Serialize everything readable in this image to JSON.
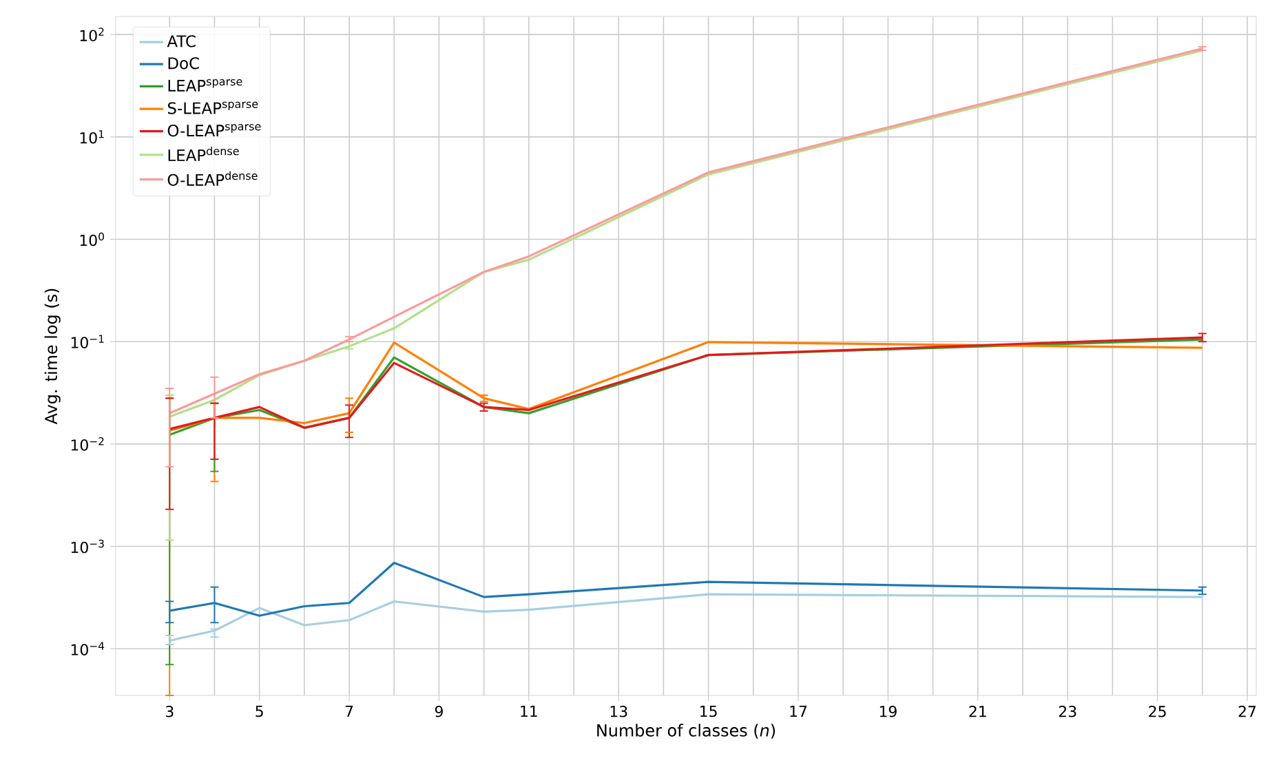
{
  "chart_data": {
    "type": "line",
    "xlabel": "Number of classes (*n*)",
    "ylabel": "Avg. time log (s)",
    "x": [
      3,
      4,
      5,
      6,
      7,
      8,
      10,
      11,
      15,
      26
    ],
    "series": [
      {
        "name": "ATC",
        "color": "#a6cee3",
        "values": [
          0.00012,
          0.00015,
          0.00025,
          0.00017,
          0.00019,
          0.00029,
          0.00023,
          0.00024,
          0.00034,
          0.00032
        ],
        "errors": [
          [
            0.00011,
            0.000135
          ],
          [
            0.00013,
            0.000156
          ],
          null,
          null,
          null,
          null,
          null,
          null,
          null,
          null
        ]
      },
      {
        "name": "DoC",
        "color": "#1f78b4",
        "values": [
          0.000235,
          0.00028,
          0.00021,
          0.00026,
          0.00028,
          0.00069,
          0.00032,
          0.00034,
          0.00045,
          0.00037
        ],
        "errors": [
          [
            0.00018,
            0.00029
          ],
          [
            0.00018,
            0.0004
          ],
          null,
          null,
          null,
          null,
          null,
          null,
          null,
          [
            0.00034,
            0.0004
          ]
        ]
      },
      {
        "name": "LEAP$^{sparse}$",
        "color": "#33a02c",
        "values": [
          0.0123,
          0.0179,
          0.0215,
          0.0144,
          0.018,
          0.07,
          0.023,
          0.02,
          0.074,
          0.105
        ],
        "errors": [
          [
            7e-05,
            0.028
          ],
          [
            0.0054,
            0.025
          ],
          null,
          null,
          null,
          null,
          null,
          null,
          null,
          null
        ]
      },
      {
        "name": "S-LEAP$^{sparse}$",
        "color": "#ff7f00",
        "values": [
          0.0135,
          0.018,
          0.018,
          0.016,
          0.02,
          0.098,
          0.028,
          0.022,
          0.099,
          0.087
        ],
        "errors": [
          [
            3.5e-05,
            0.03
          ],
          [
            0.0043,
            0.025
          ],
          null,
          null,
          [
            0.013,
            0.028
          ],
          null,
          [
            0.026,
            0.03
          ],
          null,
          null,
          null
        ]
      },
      {
        "name": "O-LEAP$^{sparse}$",
        "color": "#e31a1c",
        "values": [
          0.014,
          0.018,
          0.023,
          0.0144,
          0.018,
          0.062,
          0.023,
          0.0215,
          0.074,
          0.11
        ],
        "errors": [
          [
            0.0023,
            0.028
          ],
          [
            0.0071,
            0.025
          ],
          null,
          null,
          [
            0.0116,
            0.024
          ],
          null,
          [
            0.021,
            0.025
          ],
          null,
          null,
          [
            0.1,
            0.12
          ]
        ]
      },
      {
        "name": "LEAP$^{dense}$",
        "color": "#b2df8a",
        "values": [
          0.0185,
          0.027,
          0.047,
          0.065,
          0.09,
          0.135,
          0.48,
          0.63,
          4.3,
          70
        ],
        "errors": [
          [
            0.00115,
            0.03
          ],
          null,
          null,
          null,
          [
            0.085,
            0.1
          ],
          null,
          null,
          null,
          null,
          null
        ]
      },
      {
        "name": "O-LEAP$^{dense}$",
        "color": "#fb9a99",
        "values": [
          0.02,
          0.031,
          0.048,
          0.065,
          0.105,
          0.175,
          0.48,
          0.68,
          4.5,
          73
        ],
        "errors": [
          [
            0.006,
            0.035
          ],
          [
            0.018,
            0.045
          ],
          null,
          null,
          [
            0.1,
            0.112
          ],
          null,
          null,
          null,
          null,
          [
            70,
            76
          ]
        ]
      }
    ],
    "log": "y",
    "grid": true,
    "legend": "top left",
    "xlim": [
      1.8,
      27.2
    ],
    "ylim": [
      3.5e-05,
      150
    ],
    "xticks": [
      3,
      5,
      7,
      9,
      11,
      13,
      15,
      17,
      19,
      21,
      23,
      25,
      27
    ],
    "yticks": [
      {
        "value": 0.0001,
        "label": "10$^{−4}$"
      },
      {
        "value": 0.001,
        "label": "10$^{−3}$"
      },
      {
        "value": 0.01,
        "label": "10$^{−2}$"
      },
      {
        "value": 0.1,
        "label": "10$^{−1}$"
      },
      {
        "value": 1,
        "label": "10$^{0}$"
      },
      {
        "value": 10,
        "label": "10$^{1}$"
      },
      {
        "value": 100,
        "label": "10$^{2}$"
      }
    ]
  }
}
